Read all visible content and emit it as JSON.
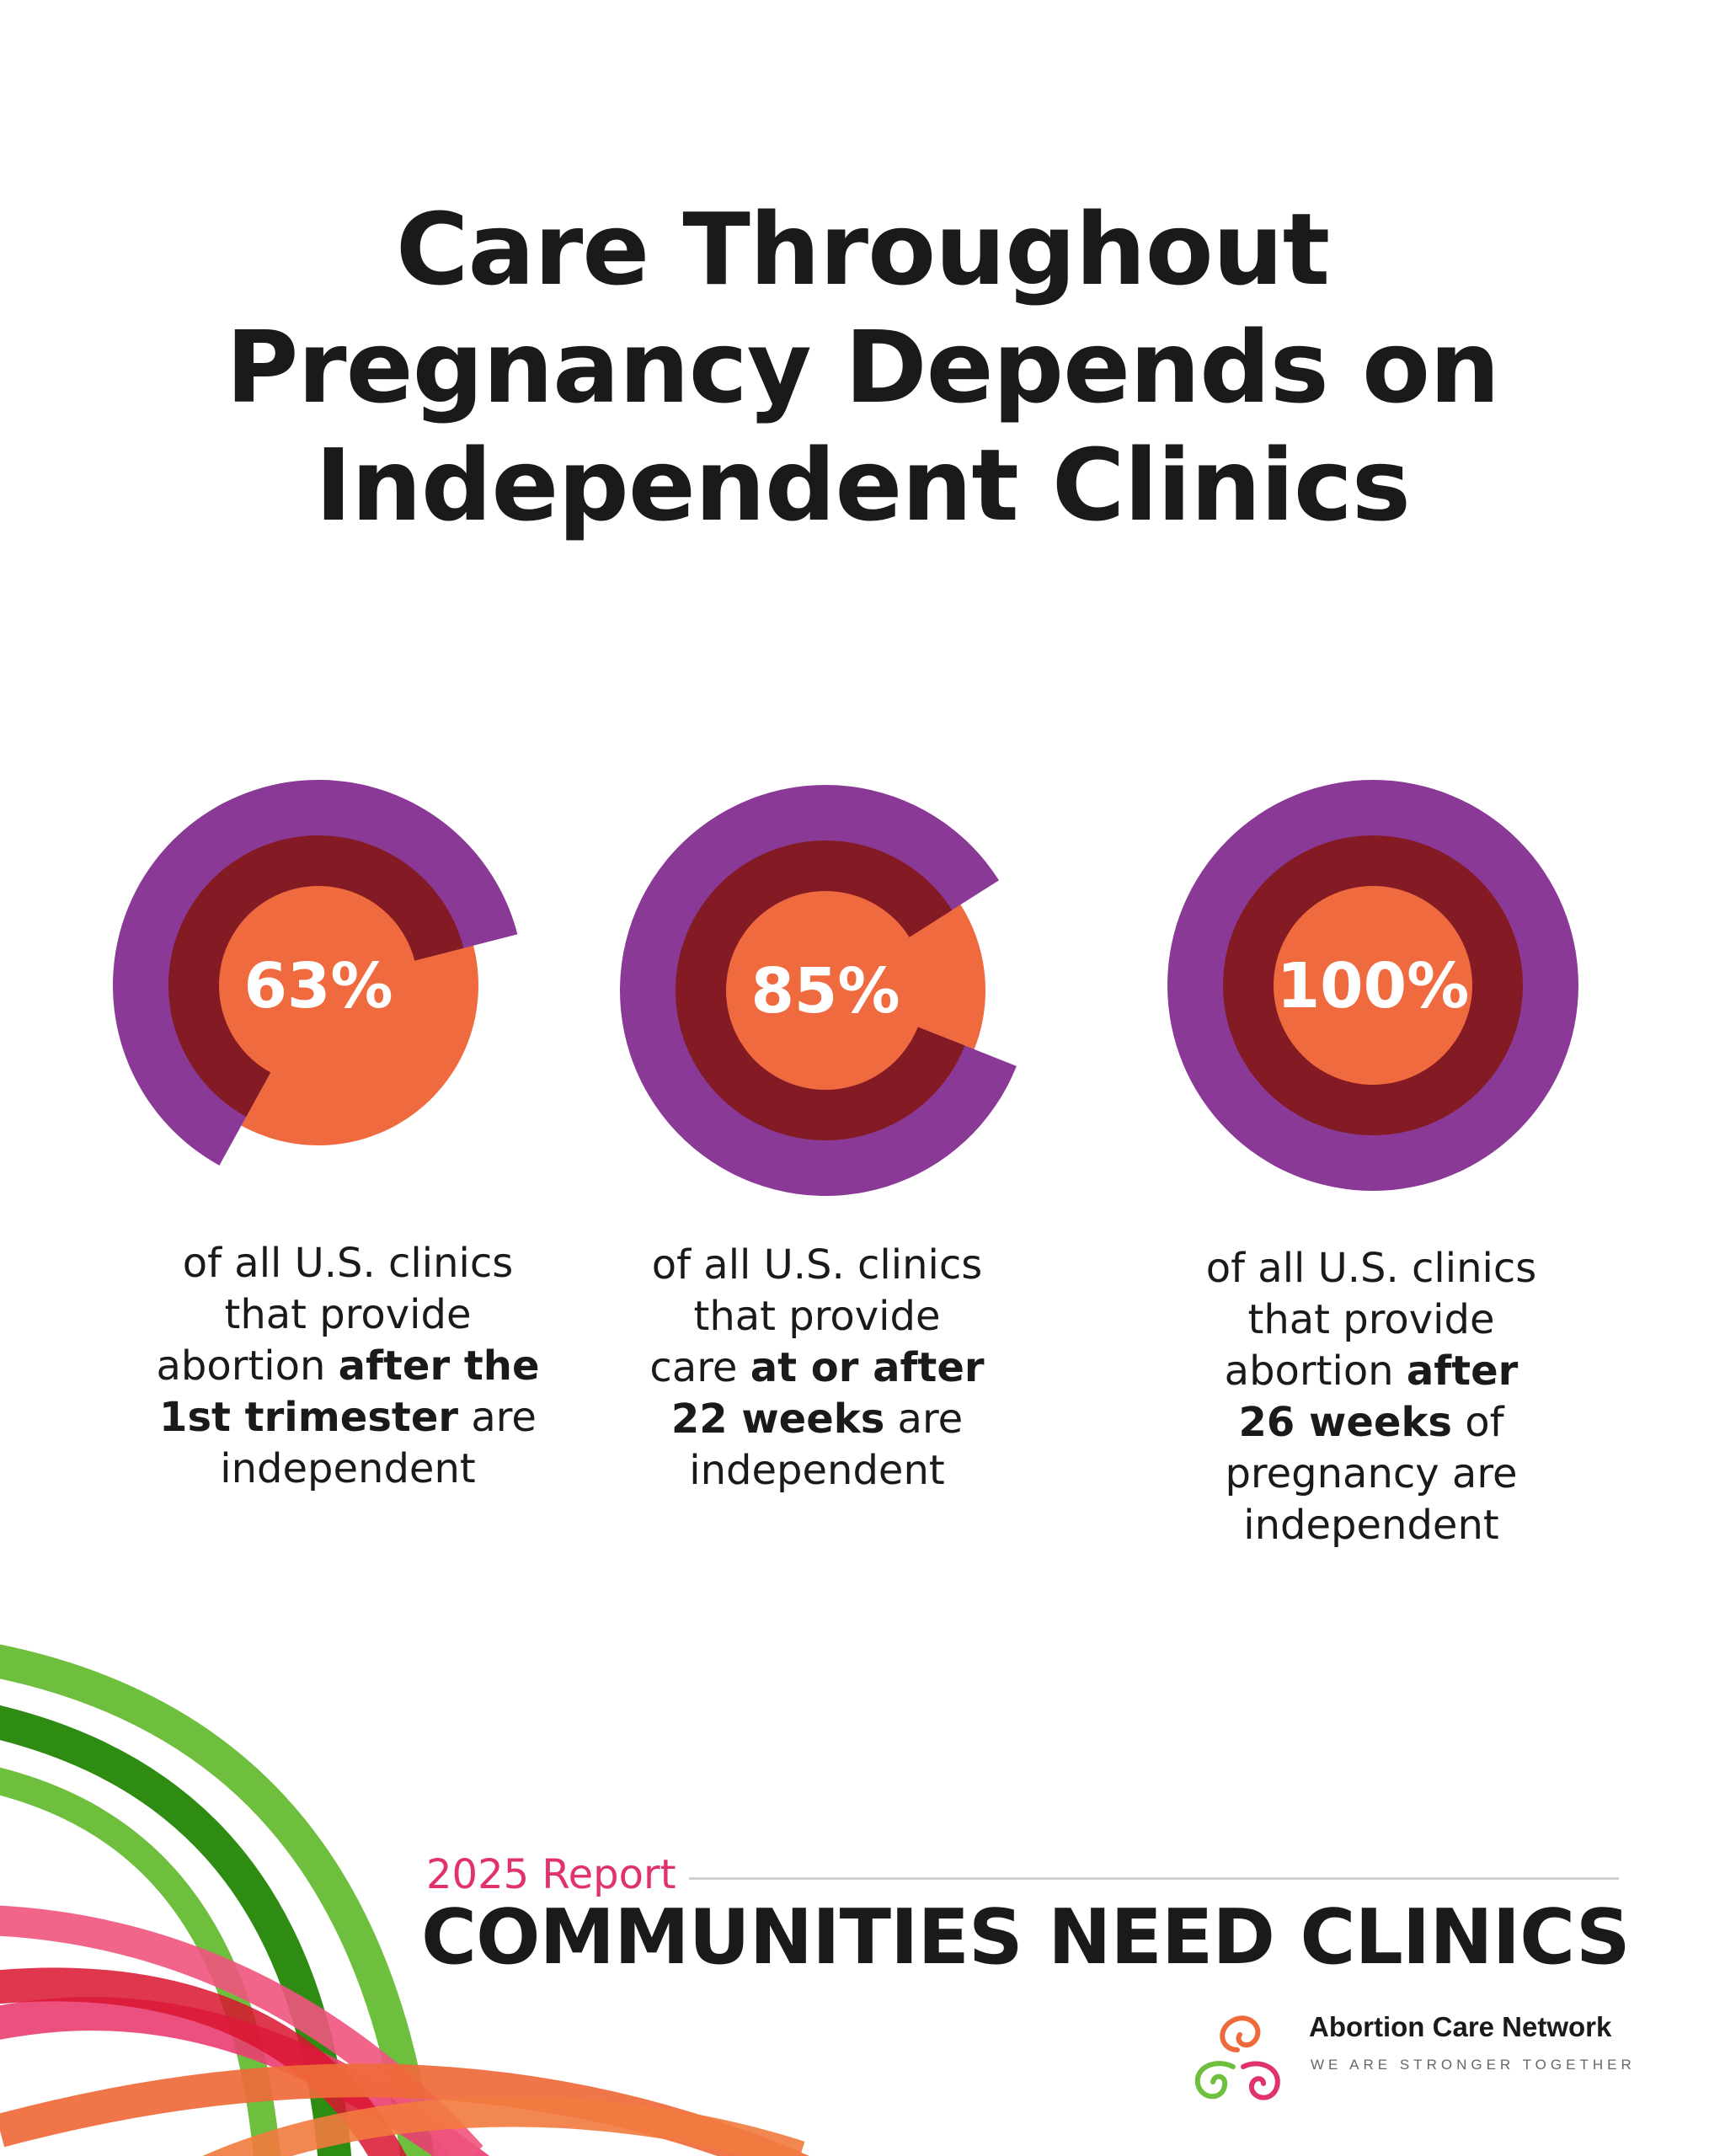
{
  "header": {
    "title_lines": [
      "Care Throughout",
      "Pregnancy Depends on",
      "Independent Clinics"
    ]
  },
  "colors": {
    "outer_ring": "#8a3a96",
    "middle_ring": "#841a23",
    "inner_disc": "#f06a3f",
    "report_pink": "#e0336b",
    "text": "#1a1a1a"
  },
  "chart_data": [
    {
      "type": "pie",
      "value": 63,
      "label": "63%",
      "caption": [
        "of all U.S. clinics",
        "that provide",
        "abortion ",
        "after the",
        "1st trimester",
        " are",
        "independent"
      ]
    },
    {
      "type": "pie",
      "value": 85,
      "label": "85%",
      "caption": [
        "of all U.S. clinics",
        "that provide",
        "care ",
        "at or after",
        "22 weeks",
        " are",
        "independent"
      ]
    },
    {
      "type": "pie",
      "value": 100,
      "label": "100%",
      "caption": [
        "of all U.S. clinics",
        "that provide",
        "abortion ",
        "after",
        "26 weeks",
        " of",
        "pregnancy are",
        "independent"
      ]
    }
  ],
  "footer": {
    "report_label": "2025 Report",
    "report_title": "COMMUNITIES NEED CLINICS",
    "logo_icon": "swirl-logo-icon",
    "org_name": "Abortion Care Network",
    "org_tagline": "WE ARE STRONGER TOGETHER"
  }
}
